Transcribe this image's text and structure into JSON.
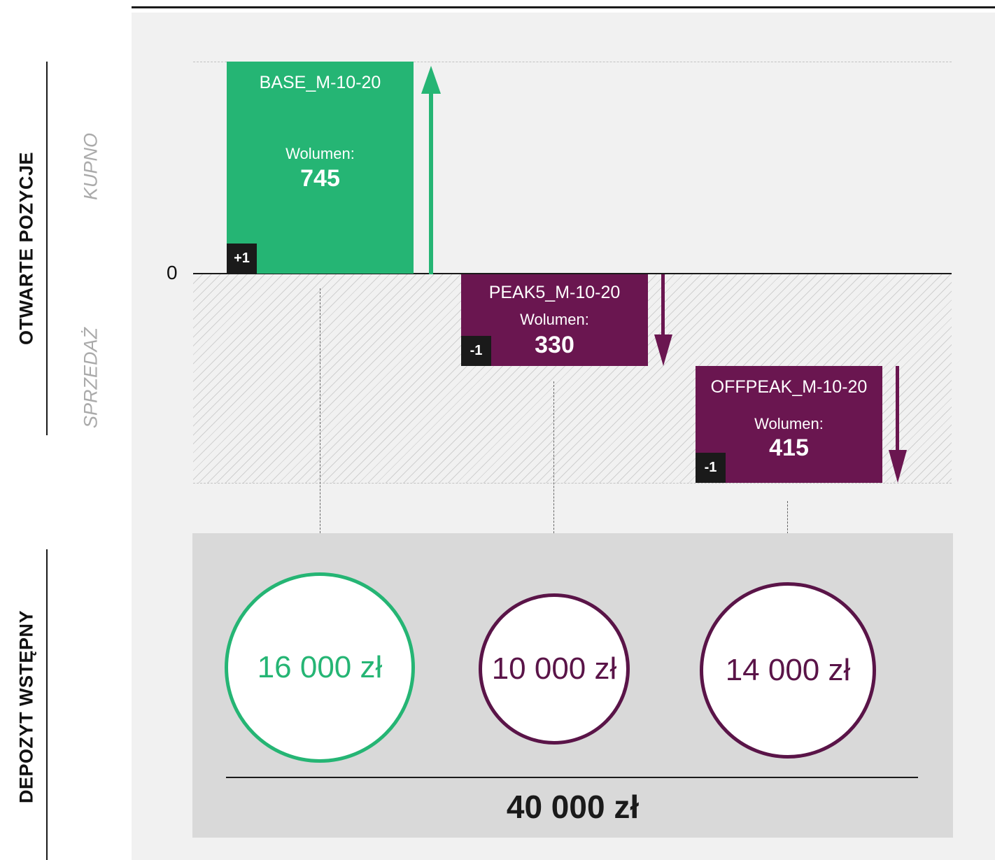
{
  "labels": {
    "open_positions": "OTWARTE POZYCJE",
    "initial_margin": "DEPOZYT WSTĘPNY",
    "buy": "KUPNO",
    "sell": "SPRZEDAŻ",
    "zero": "0"
  },
  "positions": [
    {
      "name": "BASE_M-10-20",
      "volume_label": "Wolumen:",
      "volume": "745",
      "side": "+1",
      "direction": "buy",
      "color": "#25b574"
    },
    {
      "name": "PEAK5_M-10-20",
      "volume_label": "Wolumen:",
      "volume": "330",
      "side": "-1",
      "direction": "sell",
      "color": "#6a1650"
    },
    {
      "name": "OFFPEAK_M-10-20",
      "volume_label": "Wolumen:",
      "volume": "415",
      "side": "-1",
      "direction": "sell",
      "color": "#6a1650"
    }
  ],
  "margins": [
    {
      "value": "16 000 zł",
      "color": "#25b574"
    },
    {
      "value": "10 000 zł",
      "color": "#5a1448"
    },
    {
      "value": "14 000 zł",
      "color": "#5a1448"
    }
  ],
  "total": "40 000 zł",
  "icons": {
    "buy_arrow": "up-arrow-icon",
    "sell_arrow": "down-arrow-icon",
    "connector_arrow": "down-arrow-small-icon"
  }
}
